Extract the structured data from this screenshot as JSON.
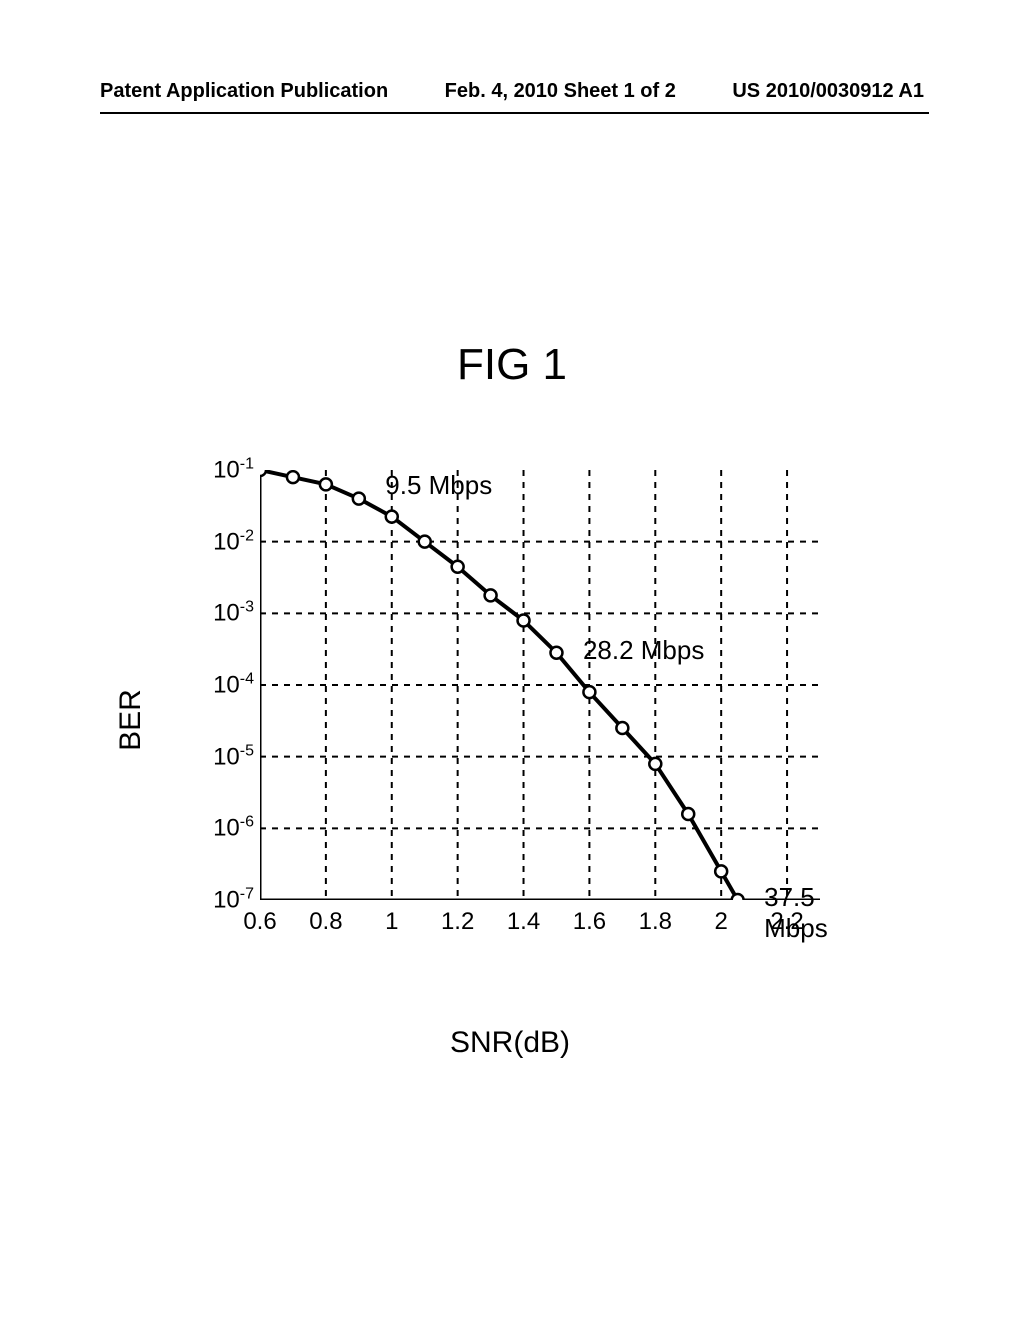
{
  "header": {
    "left": "Patent Application Publication",
    "center": "Feb. 4, 2010  Sheet 1 of 2",
    "right": "US 2010/0030912 A1"
  },
  "figure": {
    "title": "FIG 1"
  },
  "chart": {
    "type": "line",
    "ylabel": "BER",
    "xlabel": "SNR(dB)",
    "xlim": [
      0.6,
      2.3
    ],
    "ylim_exp": [
      -7,
      -1
    ],
    "xticks": [
      "0.6",
      "0.8",
      "1",
      "1.2",
      "1.4",
      "1.6",
      "1.8",
      "2",
      "2.2"
    ],
    "yticks_exp": [
      -1,
      -2,
      -3,
      -4,
      -5,
      -6,
      -7
    ],
    "grid_color": "#000000",
    "grid_dash": "6,6",
    "background": "#ffffff",
    "line_color": "#000000",
    "line_width": 4,
    "marker": "circle",
    "marker_size": 6,
    "marker_stroke": "#000000",
    "marker_fill": "#ffffff",
    "points": [
      {
        "x": 0.6,
        "yexp": -1.0
      },
      {
        "x": 0.7,
        "yexp": -1.1
      },
      {
        "x": 0.8,
        "yexp": -1.2
      },
      {
        "x": 0.9,
        "yexp": -1.4
      },
      {
        "x": 1.0,
        "yexp": -1.65
      },
      {
        "x": 1.1,
        "yexp": -2.0
      },
      {
        "x": 1.2,
        "yexp": -2.35
      },
      {
        "x": 1.3,
        "yexp": -2.75
      },
      {
        "x": 1.4,
        "yexp": -3.1
      },
      {
        "x": 1.5,
        "yexp": -3.55
      },
      {
        "x": 1.6,
        "yexp": -4.1
      },
      {
        "x": 1.7,
        "yexp": -4.6
      },
      {
        "x": 1.8,
        "yexp": -5.1
      },
      {
        "x": 1.9,
        "yexp": -5.8
      },
      {
        "x": 2.0,
        "yexp": -6.6
      },
      {
        "x": 2.05,
        "yexp": -7.0
      }
    ],
    "labels": [
      {
        "text": "9.5 Mbps",
        "x": 0.95,
        "yexp": -1.2
      },
      {
        "text": "28.2 Mbps",
        "x": 1.55,
        "yexp": -3.5
      },
      {
        "text": "37.5 Mbps",
        "x": 2.1,
        "yexp": -6.95
      }
    ]
  }
}
